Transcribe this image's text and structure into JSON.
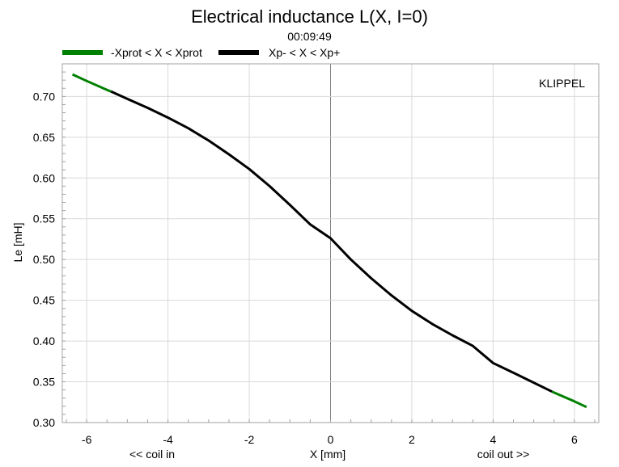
{
  "header": {
    "title": "Electrical inductance L(X, I=0)",
    "timestamp": "00:09:49"
  },
  "watermark": "KLIPPEL",
  "colors": {
    "protected_range": "#008000",
    "displacement_range": "#000000",
    "grid": "#d9d9d9",
    "zero_line": "#808080"
  },
  "chart_data": {
    "type": "line",
    "title": "Electrical inductance L(X, I=0)",
    "xlabel": "X [mm]",
    "ylabel": "Le [mH]",
    "x_annotations": {
      "left": "<< coil in",
      "right": "coil out >>"
    },
    "xlim": [
      -6.6,
      6.6
    ],
    "ylim": [
      0.3,
      0.74
    ],
    "xticks": [
      -6,
      -4,
      -2,
      0,
      2,
      4,
      6
    ],
    "yticks": [
      0.3,
      0.35,
      0.4,
      0.45,
      0.5,
      0.55,
      0.6,
      0.65,
      0.7
    ],
    "ytick_labels": [
      "0.30",
      "0.35",
      "0.40",
      "0.45",
      "0.50",
      "0.55",
      "0.60",
      "0.65",
      "0.70"
    ],
    "grid": true,
    "legend_position": "top-left",
    "series": [
      {
        "name": "-Xprot < X < Xprot",
        "color": "#008000",
        "x": [
          -6.35,
          -6.0,
          -5.5,
          -5.4
        ],
        "y": [
          0.727,
          0.719,
          0.708,
          0.706
        ]
      },
      {
        "name": "Xp- < X < Xp+",
        "color": "#000000",
        "x": [
          -5.4,
          -5.0,
          -4.5,
          -4.0,
          -3.5,
          -3.0,
          -2.5,
          -2.0,
          -1.5,
          -1.0,
          -0.5,
          0.0,
          0.5,
          1.0,
          1.5,
          2.0,
          2.5,
          3.0,
          3.5,
          4.0,
          4.5,
          5.0,
          5.45
        ],
        "y": [
          0.706,
          0.697,
          0.686,
          0.674,
          0.661,
          0.646,
          0.629,
          0.611,
          0.59,
          0.567,
          0.543,
          0.526,
          0.5,
          0.477,
          0.456,
          0.437,
          0.421,
          0.407,
          0.394,
          0.373,
          0.361,
          0.349,
          0.338
        ]
      },
      {
        "name": "-Xprot < X < Xprot",
        "color": "#008000",
        "x": [
          5.45,
          6.0,
          6.3
        ],
        "y": [
          0.338,
          0.326,
          0.319
        ]
      }
    ]
  }
}
